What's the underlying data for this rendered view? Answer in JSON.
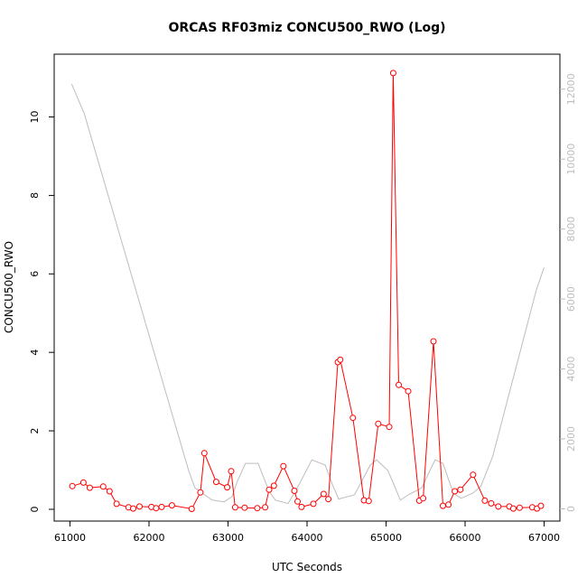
{
  "chart_data": {
    "type": "line",
    "title": "ORCAS RF03miz CONCU500_RWO (Log)",
    "xlabel": "UTC Seconds",
    "ylabel": "CONCU500_RWO",
    "y2label": "",
    "xlim": [
      60800,
      67200
    ],
    "ylim": [
      -0.3,
      11.6
    ],
    "y2lim": [
      -350,
      13000
    ],
    "x_ticks": [
      61000,
      62000,
      63000,
      64000,
      65000,
      66000,
      67000
    ],
    "y_ticks": [
      0,
      2,
      4,
      6,
      8,
      10
    ],
    "y2_ticks": [
      0,
      2000,
      4000,
      6000,
      8000,
      10000,
      12000
    ],
    "grid": false,
    "colors": {
      "primary": "#ff0000",
      "secondary": "#bdbdbd",
      "axis": "#000000"
    },
    "series": [
      {
        "axis": "left",
        "style": "line+markers",
        "color": "#ff0000",
        "points": [
          [
            61030,
            0.59
          ],
          [
            61170,
            0.68
          ],
          [
            61250,
            0.55
          ],
          [
            61420,
            0.58
          ],
          [
            61500,
            0.46
          ],
          [
            61590,
            0.14
          ],
          [
            61740,
            0.05
          ],
          [
            61800,
            0.02
          ],
          [
            61880,
            0.07
          ],
          [
            62030,
            0.06
          ],
          [
            62090,
            0.03
          ],
          [
            62160,
            0.06
          ],
          [
            62290,
            0.1
          ],
          [
            62540,
            0.01
          ],
          [
            62650,
            0.43
          ],
          [
            62700,
            1.43
          ],
          [
            62850,
            0.7
          ],
          [
            62990,
            0.56
          ],
          [
            63040,
            0.97
          ],
          [
            63090,
            0.05
          ],
          [
            63210,
            0.04
          ],
          [
            63370,
            0.03
          ],
          [
            63470,
            0.05
          ],
          [
            63520,
            0.5
          ],
          [
            63580,
            0.6
          ],
          [
            63700,
            1.1
          ],
          [
            63840,
            0.47
          ],
          [
            63880,
            0.2
          ],
          [
            63930,
            0.06
          ],
          [
            64080,
            0.14
          ],
          [
            64210,
            0.39
          ],
          [
            64270,
            0.26
          ],
          [
            64390,
            3.75
          ],
          [
            64420,
            3.81
          ],
          [
            64580,
            2.33
          ],
          [
            64720,
            0.23
          ],
          [
            64780,
            0.21
          ],
          [
            64900,
            2.18
          ],
          [
            65040,
            2.1
          ],
          [
            65090,
            11.12
          ],
          [
            65160,
            3.17
          ],
          [
            65280,
            3.01
          ],
          [
            65420,
            0.22
          ],
          [
            65470,
            0.28
          ],
          [
            65600,
            4.28
          ],
          [
            65720,
            0.09
          ],
          [
            65790,
            0.12
          ],
          [
            65870,
            0.46
          ],
          [
            65940,
            0.5
          ],
          [
            66100,
            0.88
          ],
          [
            66250,
            0.22
          ],
          [
            66330,
            0.15
          ],
          [
            66420,
            0.07
          ],
          [
            66560,
            0.07
          ],
          [
            66610,
            0.02
          ],
          [
            66690,
            0.04
          ],
          [
            66850,
            0.05
          ],
          [
            66910,
            0.02
          ],
          [
            66960,
            0.09
          ]
        ]
      },
      {
        "axis": "right",
        "style": "line",
        "color": "#bdbdbd",
        "points": [
          [
            61020,
            12150
          ],
          [
            61180,
            11300
          ],
          [
            62500,
            1100
          ],
          [
            62580,
            600
          ],
          [
            62800,
            250
          ],
          [
            62950,
            200
          ],
          [
            63050,
            350
          ],
          [
            63120,
            800
          ],
          [
            63220,
            1300
          ],
          [
            63380,
            1300
          ],
          [
            63520,
            500
          ],
          [
            63600,
            250
          ],
          [
            63760,
            150
          ],
          [
            63900,
            700
          ],
          [
            64060,
            1400
          ],
          [
            64230,
            1250
          ],
          [
            64320,
            700
          ],
          [
            64400,
            280
          ],
          [
            64600,
            400
          ],
          [
            64800,
            1250
          ],
          [
            64880,
            1400
          ],
          [
            65020,
            1100
          ],
          [
            65080,
            800
          ],
          [
            65180,
            250
          ],
          [
            65280,
            400
          ],
          [
            65450,
            600
          ],
          [
            65620,
            1400
          ],
          [
            65720,
            1300
          ],
          [
            65850,
            450
          ],
          [
            65950,
            300
          ],
          [
            66100,
            450
          ],
          [
            66200,
            650
          ],
          [
            66350,
            1500
          ],
          [
            66900,
            6250
          ],
          [
            67000,
            6900
          ]
        ]
      }
    ]
  }
}
